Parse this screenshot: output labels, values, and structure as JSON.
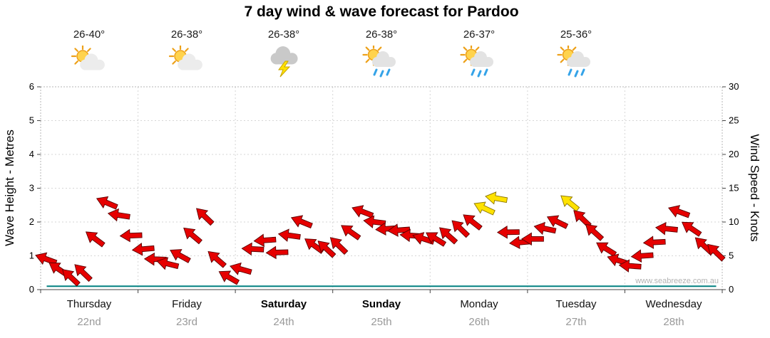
{
  "title": "7 day wind & wave forecast for Pardoo",
  "watermark": "www.seabreeze.com.au",
  "header": {
    "temps": [
      {
        "label": "26-40°",
        "icon": "sun-cloud"
      },
      {
        "label": "26-38°",
        "icon": "sun-cloud"
      },
      {
        "label": "26-38°",
        "icon": "thunderstorm"
      },
      {
        "label": "26-38°",
        "icon": "sun-cloud-rain"
      },
      {
        "label": "26-37°",
        "icon": "sun-cloud-rain"
      },
      {
        "label": "25-36°",
        "icon": "sun-cloud-rain"
      }
    ]
  },
  "chart_data": {
    "type": "line",
    "subtype": "wind-arrow-timeseries",
    "title": "7 day wind & wave forecast for Pardoo",
    "days": [
      {
        "name": "Thursday",
        "date": "22nd",
        "bold": false
      },
      {
        "name": "Friday",
        "date": "23rd",
        "bold": false
      },
      {
        "name": "Saturday",
        "date": "24th",
        "bold": true
      },
      {
        "name": "Sunday",
        "date": "25th",
        "bold": true
      },
      {
        "name": "Monday",
        "date": "26th",
        "bold": false
      },
      {
        "name": "Tuesday",
        "date": "27th",
        "bold": false
      },
      {
        "name": "Wednesday",
        "date": "28th",
        "bold": false
      }
    ],
    "points_per_day": 8,
    "left_axis": {
      "label": "Wave Height - Metres",
      "min": 0,
      "max": 6,
      "step": 1
    },
    "right_axis": {
      "label": "Wind Speed - Knots",
      "min": 0,
      "max": 30,
      "step": 5
    },
    "wind_series": {
      "name": "Wind speed (knots, arrow markers)",
      "values": [
        4.5,
        3.0,
        1.8,
        2.5,
        7.5,
        12.8,
        11.0,
        8.0,
        6.0,
        4.5,
        3.8,
        5.0,
        8.0,
        10.8,
        4.5,
        1.8,
        3.0,
        6.0,
        7.3,
        5.5,
        8.0,
        10.0,
        6.5,
        6.0,
        6.5,
        8.5,
        11.5,
        10.0,
        9.0,
        8.8,
        8.0,
        7.5,
        7.5,
        8.0,
        9.0,
        10.0,
        12.0,
        13.5,
        8.5,
        7.0,
        7.5,
        9.0,
        10.0,
        12.8,
        10.5,
        8.5,
        6.0,
        4.3,
        3.5,
        5.0,
        7.0,
        9.0,
        11.5,
        9.0,
        6.5,
        5.5
      ],
      "directions": [
        200,
        214,
        223,
        224,
        217,
        203,
        189,
        178,
        175,
        182,
        194,
        209,
        220,
        224,
        221,
        210,
        196,
        183,
        176,
        178,
        188,
        202,
        216,
        223,
        224,
        215,
        201,
        187,
        176,
        176,
        184,
        198,
        212,
        222,
        224,
        218,
        205,
        190,
        179,
        175,
        180,
        192,
        206,
        219,
        224,
        222,
        212,
        198,
        184,
        176,
        177,
        186,
        200,
        214,
        223,
        224
      ],
      "yellow_indices": [
        36,
        37,
        43
      ]
    },
    "wave_series": {
      "name": "Wave height (metres)",
      "color": "#008080",
      "values": [
        0.1,
        0.1,
        0.1,
        0.1,
        0.1,
        0.1,
        0.1,
        0.1,
        0.1,
        0.1,
        0.1,
        0.1,
        0.1,
        0.1,
        0.1,
        0.1,
        0.1,
        0.1,
        0.1,
        0.1,
        0.1,
        0.1,
        0.1,
        0.1,
        0.1,
        0.1,
        0.1,
        0.1,
        0.1,
        0.1,
        0.1,
        0.1,
        0.1,
        0.1,
        0.1,
        0.1,
        0.1,
        0.1,
        0.1,
        0.1,
        0.1,
        0.1,
        0.1,
        0.1,
        0.1,
        0.1,
        0.1,
        0.1,
        0.1,
        0.1,
        0.1,
        0.1,
        0.1,
        0.1,
        0.1,
        0.1
      ]
    },
    "colors": {
      "arrow_red": "#e60000",
      "arrow_red_outline": "#5a0000",
      "arrow_yellow": "#ffe200",
      "arrow_yellow_outline": "#8a7400",
      "grid": "#d6d6d6",
      "frame": "#b5b5b5"
    },
    "grid": true,
    "legend": "none"
  }
}
